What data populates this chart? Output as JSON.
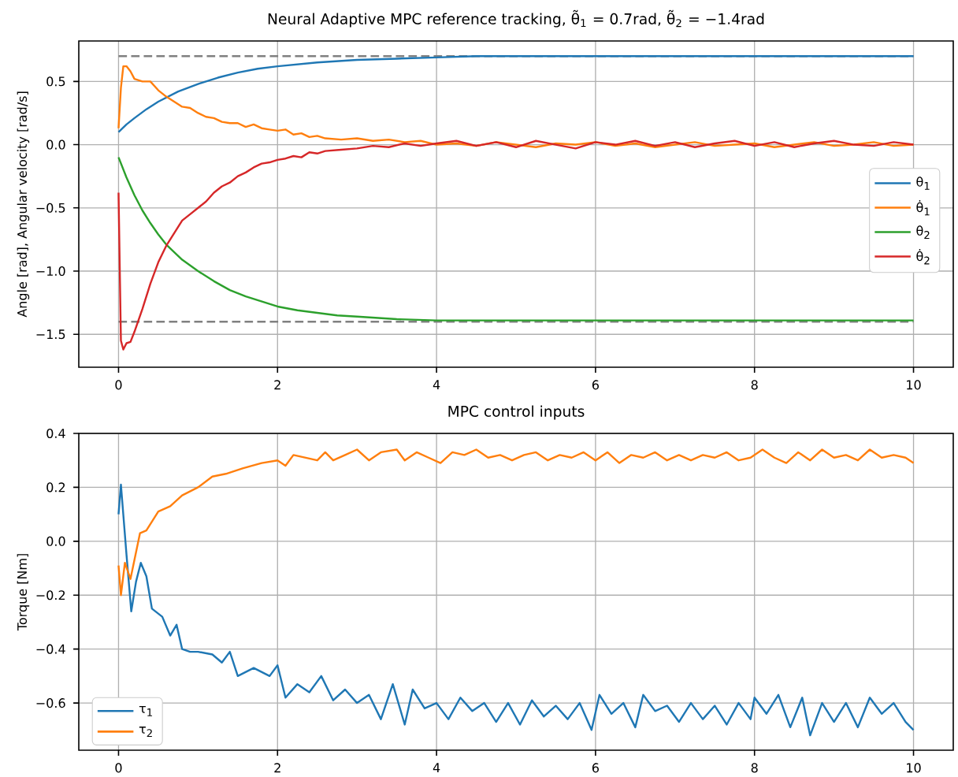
{
  "chart_data": [
    {
      "type": "line",
      "title": "Neural Adaptive MPC reference tracking,  θ̃$_{1}$ = 0.7rad,  θ̃$_{2}$ = −1.4rad",
      "ylabel": "Angle [rad], Angular velocity [rad/s]",
      "xlim": [
        -0.5,
        10.5
      ],
      "ylim": [
        -1.76,
        0.82
      ],
      "xticks": [
        0,
        2,
        4,
        6,
        8,
        10
      ],
      "yticks": [
        {
          "value": -1.5,
          "label": "−1.5"
        },
        {
          "value": -1.0,
          "label": "−1.0"
        },
        {
          "value": -0.5,
          "label": "−0.5"
        },
        {
          "value": 0.0,
          "label": "0.0"
        },
        {
          "value": 0.5,
          "label": "0.5"
        }
      ],
      "grid": true,
      "legend": "right",
      "ref_lines": [
        {
          "axis": "y",
          "value": 0.7,
          "color": "#808080",
          "line_style": "dashed"
        },
        {
          "axis": "y",
          "value": -1.4,
          "color": "#808080",
          "line_style": "dashed"
        }
      ],
      "series": [
        {
          "name": "θ$_{1}$",
          "color": "#1f77b4",
          "x": [
            0,
            0.1,
            0.2,
            0.35,
            0.5,
            0.75,
            1,
            1.25,
            1.5,
            1.75,
            2,
            2.5,
            3,
            3.5,
            4,
            4.5,
            5,
            6,
            7,
            8,
            9,
            10
          ],
          "values": [
            0.1,
            0.16,
            0.21,
            0.28,
            0.34,
            0.42,
            0.48,
            0.53,
            0.57,
            0.6,
            0.62,
            0.65,
            0.67,
            0.68,
            0.69,
            0.7,
            0.7,
            0.7,
            0.7,
            0.7,
            0.7,
            0.7
          ]
        },
        {
          "name": "θ̇$_{1}$",
          "color": "#ff7f0e",
          "x": [
            0,
            0.03,
            0.06,
            0.1,
            0.15,
            0.2,
            0.3,
            0.4,
            0.5,
            0.6,
            0.7,
            0.8,
            0.9,
            1.0,
            1.1,
            1.2,
            1.3,
            1.4,
            1.5,
            1.6,
            1.7,
            1.8,
            1.9,
            2.0,
            2.1,
            2.2,
            2.3,
            2.4,
            2.5,
            2.6,
            2.8,
            3.0,
            3.2,
            3.4,
            3.6,
            3.8,
            4.0,
            4.25,
            4.5,
            4.75,
            5.0,
            5.25,
            5.5,
            5.75,
            6.0,
            6.25,
            6.5,
            6.75,
            7.0,
            7.25,
            7.5,
            7.75,
            8.0,
            8.25,
            8.5,
            8.75,
            9.0,
            9.25,
            9.5,
            9.75,
            10.0
          ],
          "values": [
            0.13,
            0.45,
            0.62,
            0.62,
            0.58,
            0.52,
            0.5,
            0.5,
            0.43,
            0.38,
            0.34,
            0.3,
            0.29,
            0.25,
            0.22,
            0.21,
            0.18,
            0.17,
            0.17,
            0.14,
            0.16,
            0.13,
            0.12,
            0.11,
            0.12,
            0.08,
            0.09,
            0.06,
            0.07,
            0.05,
            0.04,
            0.05,
            0.03,
            0.04,
            0.02,
            0.03,
            0.0,
            0.01,
            -0.01,
            0.02,
            0.0,
            -0.02,
            0.01,
            0.0,
            0.02,
            -0.01,
            0.01,
            -0.02,
            0.0,
            0.02,
            -0.01,
            0.0,
            0.01,
            -0.02,
            0.0,
            0.02,
            -0.01,
            0.0,
            0.02,
            -0.01,
            0.0
          ]
        },
        {
          "name": "θ$_{2}$",
          "color": "#2ca02c",
          "x": [
            0,
            0.1,
            0.2,
            0.3,
            0.4,
            0.5,
            0.6,
            0.8,
            1.0,
            1.2,
            1.4,
            1.6,
            1.8,
            2.0,
            2.25,
            2.5,
            2.75,
            3.0,
            3.5,
            4,
            5,
            6,
            7,
            8,
            9,
            10
          ],
          "values": [
            -0.1,
            -0.26,
            -0.4,
            -0.52,
            -0.62,
            -0.71,
            -0.79,
            -0.91,
            -1.0,
            -1.08,
            -1.15,
            -1.2,
            -1.24,
            -1.28,
            -1.31,
            -1.33,
            -1.35,
            -1.36,
            -1.38,
            -1.39,
            -1.39,
            -1.39,
            -1.39,
            -1.39,
            -1.39,
            -1.39
          ]
        },
        {
          "name": "θ̇$_{2}$",
          "color": "#d62728",
          "x": [
            0,
            0.03,
            0.06,
            0.1,
            0.15,
            0.2,
            0.3,
            0.4,
            0.5,
            0.6,
            0.7,
            0.8,
            0.9,
            1.0,
            1.1,
            1.2,
            1.3,
            1.4,
            1.5,
            1.6,
            1.7,
            1.8,
            1.9,
            2.0,
            2.1,
            2.2,
            2.3,
            2.4,
            2.5,
            2.6,
            2.8,
            3.0,
            3.2,
            3.4,
            3.6,
            3.8,
            4.0,
            4.25,
            4.5,
            4.75,
            5.0,
            5.25,
            5.5,
            5.75,
            6.0,
            6.25,
            6.5,
            6.75,
            7.0,
            7.25,
            7.5,
            7.75,
            8.0,
            8.25,
            8.5,
            8.75,
            9.0,
            9.25,
            9.5,
            9.75,
            10.0
          ],
          "values": [
            -0.38,
            -1.55,
            -1.62,
            -1.57,
            -1.56,
            -1.48,
            -1.3,
            -1.1,
            -0.93,
            -0.8,
            -0.7,
            -0.6,
            -0.55,
            -0.5,
            -0.45,
            -0.38,
            -0.33,
            -0.3,
            -0.25,
            -0.22,
            -0.18,
            -0.15,
            -0.14,
            -0.12,
            -0.11,
            -0.09,
            -0.1,
            -0.06,
            -0.07,
            -0.05,
            -0.04,
            -0.03,
            -0.01,
            -0.02,
            0.01,
            -0.01,
            0.01,
            0.03,
            -0.01,
            0.02,
            -0.02,
            0.03,
            0.0,
            -0.03,
            0.02,
            0.0,
            0.03,
            -0.01,
            0.02,
            -0.02,
            0.01,
            0.03,
            -0.01,
            0.02,
            -0.02,
            0.01,
            0.03,
            0.0,
            -0.01,
            0.02,
            0.0
          ]
        }
      ]
    },
    {
      "type": "line",
      "title": "MPC control inputs",
      "ylabel": "Torque [Nm]",
      "xlim": [
        -0.5,
        10.5
      ],
      "ylim": [
        -0.775,
        0.4
      ],
      "xticks": [
        0,
        2,
        4,
        6,
        8,
        10
      ],
      "yticks": [
        {
          "value": -0.6,
          "label": "−0.6"
        },
        {
          "value": -0.4,
          "label": "−0.4"
        },
        {
          "value": -0.2,
          "label": "−0.2"
        },
        {
          "value": 0.0,
          "label": "0.0"
        },
        {
          "value": 0.2,
          "label": "0.2"
        },
        {
          "value": 0.4,
          "label": "0.4"
        }
      ],
      "grid": true,
      "legend": "bottom left",
      "series": [
        {
          "name": "τ$_{1}$",
          "color": "#1f77b4",
          "x": [
            0,
            0.03,
            0.1,
            0.16,
            0.22,
            0.28,
            0.35,
            0.42,
            0.55,
            0.65,
            0.73,
            0.8,
            0.9,
            1.0,
            1.18,
            1.3,
            1.4,
            1.5,
            1.7,
            1.9,
            2.0,
            2.1,
            2.25,
            2.4,
            2.55,
            2.7,
            2.85,
            3.0,
            3.15,
            3.3,
            3.45,
            3.6,
            3.7,
            3.85,
            4.0,
            4.15,
            4.3,
            4.45,
            4.6,
            4.75,
            4.9,
            5.05,
            5.2,
            5.35,
            5.5,
            5.65,
            5.8,
            5.95,
            6.05,
            6.2,
            6.35,
            6.5,
            6.6,
            6.75,
            6.9,
            7.05,
            7.2,
            7.35,
            7.5,
            7.65,
            7.8,
            7.95,
            8.0,
            8.15,
            8.3,
            8.45,
            8.6,
            8.7,
            8.85,
            9.0,
            9.15,
            9.3,
            9.45,
            9.6,
            9.75,
            9.9,
            10.0
          ],
          "values": [
            0.1,
            0.21,
            -0.05,
            -0.26,
            -0.15,
            -0.08,
            -0.13,
            -0.25,
            -0.28,
            -0.35,
            -0.31,
            -0.4,
            -0.41,
            -0.41,
            -0.42,
            -0.45,
            -0.41,
            -0.5,
            -0.47,
            -0.5,
            -0.46,
            -0.58,
            -0.53,
            -0.56,
            -0.5,
            -0.59,
            -0.55,
            -0.6,
            -0.57,
            -0.66,
            -0.53,
            -0.68,
            -0.55,
            -0.62,
            -0.6,
            -0.66,
            -0.58,
            -0.63,
            -0.6,
            -0.67,
            -0.6,
            -0.68,
            -0.59,
            -0.65,
            -0.61,
            -0.66,
            -0.6,
            -0.7,
            -0.57,
            -0.64,
            -0.6,
            -0.69,
            -0.57,
            -0.63,
            -0.61,
            -0.67,
            -0.6,
            -0.66,
            -0.61,
            -0.68,
            -0.6,
            -0.66,
            -0.58,
            -0.64,
            -0.57,
            -0.69,
            -0.58,
            -0.72,
            -0.6,
            -0.67,
            -0.6,
            -0.69,
            -0.58,
            -0.64,
            -0.6,
            -0.67,
            -0.7
          ]
        },
        {
          "name": "τ$_{2}$",
          "color": "#ff7f0e",
          "x": [
            0,
            0.03,
            0.08,
            0.15,
            0.27,
            0.35,
            0.5,
            0.65,
            0.8,
            1.0,
            1.18,
            1.35,
            1.56,
            1.8,
            2.0,
            2.1,
            2.2,
            2.35,
            2.5,
            2.6,
            2.7,
            2.85,
            3.0,
            3.15,
            3.3,
            3.5,
            3.6,
            3.75,
            3.9,
            4.05,
            4.2,
            4.35,
            4.5,
            4.65,
            4.8,
            4.95,
            5.1,
            5.25,
            5.4,
            5.55,
            5.7,
            5.85,
            6.0,
            6.15,
            6.3,
            6.45,
            6.6,
            6.75,
            6.9,
            7.05,
            7.2,
            7.35,
            7.5,
            7.65,
            7.8,
            7.95,
            8.1,
            8.25,
            8.4,
            8.55,
            8.7,
            8.85,
            9.0,
            9.15,
            9.3,
            9.45,
            9.6,
            9.75,
            9.9,
            10.0
          ],
          "values": [
            -0.09,
            -0.2,
            -0.08,
            -0.14,
            0.03,
            0.04,
            0.11,
            0.13,
            0.17,
            0.2,
            0.24,
            0.25,
            0.27,
            0.29,
            0.3,
            0.28,
            0.32,
            0.31,
            0.3,
            0.33,
            0.3,
            0.32,
            0.34,
            0.3,
            0.33,
            0.34,
            0.3,
            0.33,
            0.31,
            0.29,
            0.33,
            0.32,
            0.34,
            0.31,
            0.32,
            0.3,
            0.32,
            0.33,
            0.3,
            0.32,
            0.31,
            0.33,
            0.3,
            0.33,
            0.29,
            0.32,
            0.31,
            0.33,
            0.3,
            0.32,
            0.3,
            0.32,
            0.31,
            0.33,
            0.3,
            0.31,
            0.34,
            0.31,
            0.29,
            0.33,
            0.3,
            0.34,
            0.31,
            0.32,
            0.3,
            0.34,
            0.31,
            0.32,
            0.31,
            0.29
          ]
        }
      ]
    }
  ]
}
